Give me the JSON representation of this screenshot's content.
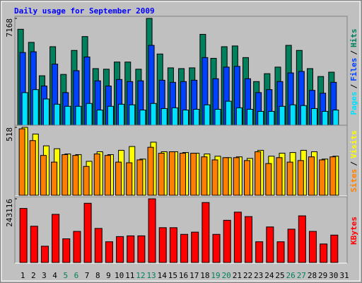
{
  "chart_data": {
    "type": "bar",
    "title": "Daily usage for September 2009",
    "categories": [
      "1",
      "2",
      "3",
      "4",
      "5",
      "6",
      "7",
      "8",
      "9",
      "10",
      "11",
      "12",
      "13",
      "14",
      "15",
      "16",
      "17",
      "18",
      "19",
      "20",
      "21",
      "22",
      "23",
      "24",
      "25",
      "26",
      "27",
      "28",
      "29",
      "30",
      "31"
    ],
    "weekend_days": [
      5,
      6,
      12,
      13,
      19,
      20,
      26,
      27
    ],
    "weekend_color": "#00805c",
    "separator": "/",
    "panels": [
      {
        "ylim": [
          0,
          7168
        ],
        "yticks": [
          7168
        ],
        "series": [
          {
            "name": "Hits",
            "color": "#00805c",
            "values": [
              6440,
              5560,
              3320,
              5270,
              3410,
              5020,
              5950,
              3800,
              3760,
              4240,
              4240,
              3760,
              7168,
              4780,
              3850,
              3800,
              3850,
              6100,
              4490,
              5270,
              5320,
              4540,
              2930,
              3460,
              3900,
              5360,
              5020,
              3800,
              3270,
              3560,
              0
            ]
          },
          {
            "name": "Files",
            "color": "#0040ff",
            "values": [
              4880,
              4930,
              2630,
              4100,
              2190,
              3660,
              4580,
              2980,
              2630,
              3070,
              2930,
              2980,
              5360,
              3020,
              2880,
              2930,
              3020,
              4540,
              3120,
              3900,
              3950,
              3120,
              2190,
              2390,
              2930,
              3510,
              3610,
              2340,
              2150,
              2880,
              0
            ]
          },
          {
            "name": "Pages",
            "color": "#00e0ff",
            "values": [
              2190,
              2390,
              1760,
              1410,
              1270,
              1270,
              1460,
              1020,
              1270,
              1410,
              1370,
              1020,
              1460,
              1120,
              1170,
              1020,
              1070,
              1370,
              1070,
              1610,
              1170,
              1070,
              930,
              930,
              1270,
              1370,
              1320,
              1120,
              930,
              1020,
              0
            ]
          }
        ]
      },
      {
        "ylim": [
          0,
          518
        ],
        "yticks": [
          518
        ],
        "series": [
          {
            "name": "Visits",
            "color": "#ffff00",
            "values": [
              518,
              467,
              377,
              355,
              315,
              310,
              259,
              332,
              310,
              343,
              372,
              276,
              405,
              332,
              332,
              326,
              321,
              315,
              298,
              287,
              293,
              281,
              343,
              298,
              321,
              326,
              343,
              332,
              276,
              298,
              0
            ]
          },
          {
            "name": "Sites",
            "color": "#ff8000",
            "values": [
              507,
              417,
              304,
              253,
              310,
              304,
              220,
              315,
              304,
              253,
              248,
              270,
              366,
              321,
              332,
              321,
              321,
              293,
              270,
              287,
              287,
              265,
              332,
              242,
              287,
              253,
              265,
              293,
              270,
              293,
              0
            ]
          }
        ]
      },
      {
        "ylim": [
          0,
          243116
        ],
        "yticks": [
          243116
        ],
        "series": [
          {
            "name": "KBytes",
            "color": "#ff0000",
            "values": [
              206370,
              138520,
              62190,
              183760,
              90460,
              118730,
              226160,
              130040,
              79160,
              98950,
              101770,
              101770,
              243116,
              132870,
              132870,
              107430,
              115910,
              228990,
              107430,
              161140,
              192230,
              175270,
              79160,
              135700,
              79160,
              127210,
              178100,
              118730,
              70670,
              104600,
              0
            ]
          }
        ]
      }
    ]
  }
}
